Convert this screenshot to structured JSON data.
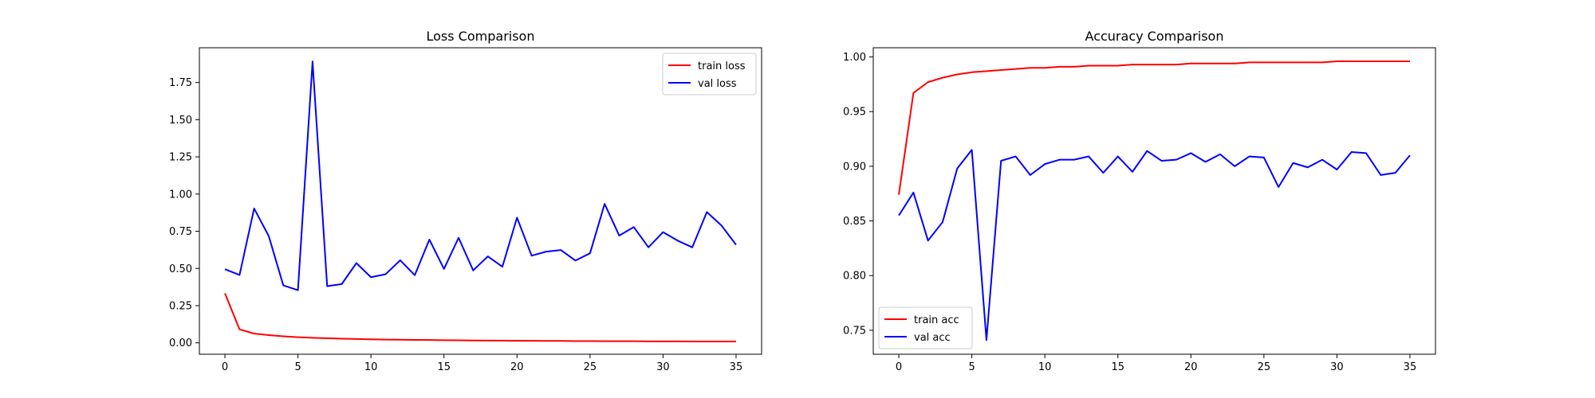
{
  "chart_data": [
    {
      "type": "line",
      "title": "Loss Comparison",
      "xlabel": "",
      "ylabel": "",
      "xlim": [
        -1.75,
        36.75
      ],
      "ylim": [
        -0.0765,
        1.9834
      ],
      "xticks": [
        0,
        5,
        10,
        15,
        20,
        25,
        30,
        35
      ],
      "yticks": [
        0.0,
        0.25,
        0.5,
        0.75,
        1.0,
        1.25,
        1.5,
        1.75
      ],
      "ytick_format": 2,
      "grid": false,
      "legend": "upper right",
      "x": [
        0,
        1,
        2,
        3,
        4,
        5,
        6,
        7,
        8,
        9,
        10,
        11,
        12,
        13,
        14,
        15,
        16,
        17,
        18,
        19,
        20,
        21,
        22,
        23,
        24,
        25,
        26,
        27,
        28,
        29,
        30,
        31,
        32,
        33,
        34,
        35
      ],
      "series": [
        {
          "name": "train loss",
          "color": "#ff0000",
          "values": [
            0.333,
            0.091,
            0.062,
            0.052,
            0.044,
            0.038,
            0.034,
            0.031,
            0.028,
            0.026,
            0.024,
            0.022,
            0.021,
            0.02,
            0.019,
            0.018,
            0.017,
            0.016,
            0.015,
            0.015,
            0.014,
            0.014,
            0.013,
            0.013,
            0.012,
            0.012,
            0.011,
            0.011,
            0.011,
            0.01,
            0.01,
            0.01,
            0.009,
            0.009,
            0.009,
            0.009
          ]
        },
        {
          "name": "val loss",
          "color": "#0000ff",
          "values": [
            0.495,
            0.456,
            0.903,
            0.718,
            0.386,
            0.354,
            1.891,
            0.381,
            0.395,
            0.536,
            0.441,
            0.461,
            0.555,
            0.455,
            0.694,
            0.497,
            0.706,
            0.487,
            0.581,
            0.512,
            0.841,
            0.586,
            0.613,
            0.624,
            0.553,
            0.602,
            0.934,
            0.721,
            0.778,
            0.642,
            0.744,
            0.687,
            0.642,
            0.879,
            0.789,
            0.659
          ]
        }
      ]
    },
    {
      "type": "line",
      "title": "Accuracy Comparison",
      "xlabel": "",
      "ylabel": "",
      "xlim": [
        -1.75,
        36.75
      ],
      "ylim": [
        0.7281,
        1.0084
      ],
      "xticks": [
        0,
        5,
        10,
        15,
        20,
        25,
        30,
        35
      ],
      "yticks": [
        0.75,
        0.8,
        0.85,
        0.9,
        0.95,
        1.0
      ],
      "ytick_format": 2,
      "grid": false,
      "legend": "lower left",
      "x": [
        0,
        1,
        2,
        3,
        4,
        5,
        6,
        7,
        8,
        9,
        10,
        11,
        12,
        13,
        14,
        15,
        16,
        17,
        18,
        19,
        20,
        21,
        22,
        23,
        24,
        25,
        26,
        27,
        28,
        29,
        30,
        31,
        32,
        33,
        34,
        35
      ],
      "series": [
        {
          "name": "train acc",
          "color": "#ff0000",
          "values": [
            0.874,
            0.967,
            0.977,
            0.981,
            0.984,
            0.986,
            0.987,
            0.988,
            0.989,
            0.99,
            0.99,
            0.991,
            0.991,
            0.992,
            0.992,
            0.992,
            0.993,
            0.993,
            0.993,
            0.993,
            0.994,
            0.994,
            0.994,
            0.994,
            0.995,
            0.995,
            0.995,
            0.995,
            0.995,
            0.995,
            0.996,
            0.996,
            0.996,
            0.996,
            0.996,
            0.996
          ]
        },
        {
          "name": "val acc",
          "color": "#0000ff",
          "values": [
            0.855,
            0.876,
            0.832,
            0.849,
            0.898,
            0.915,
            0.741,
            0.905,
            0.909,
            0.892,
            0.902,
            0.906,
            0.906,
            0.909,
            0.894,
            0.909,
            0.895,
            0.914,
            0.905,
            0.906,
            0.912,
            0.904,
            0.911,
            0.9,
            0.909,
            0.908,
            0.881,
            0.903,
            0.899,
            0.906,
            0.897,
            0.913,
            0.912,
            0.892,
            0.894,
            0.91
          ]
        }
      ]
    }
  ]
}
